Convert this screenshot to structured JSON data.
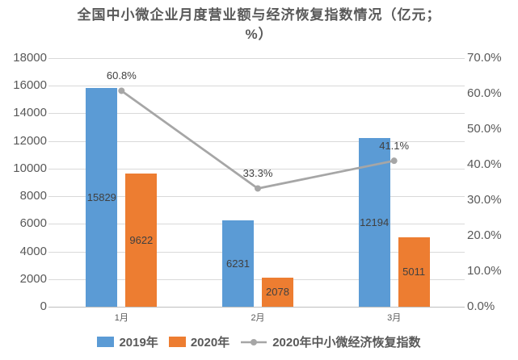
{
  "title_lines": [
    "全国中小微企业月度营业额与经济恢复指数情况（亿元；",
    "%）"
  ],
  "chart_data": {
    "type": "bar",
    "subtype": "combo-bar-line-dual-axis",
    "title": "全国中小微企业月度营业额与经济恢复指数情况（亿元；%）",
    "categories": [
      "1月",
      "2月",
      "3月"
    ],
    "series": [
      {
        "name": "2019年",
        "type": "bar",
        "axis": "left",
        "color": "#5B9BD5",
        "values": [
          15829,
          6231,
          12194
        ],
        "labels": [
          "15829",
          "6231",
          "12194"
        ]
      },
      {
        "name": "2020年",
        "type": "bar",
        "axis": "left",
        "color": "#ED7D31",
        "values": [
          9622,
          2078,
          5011
        ],
        "labels": [
          "9622",
          "2078",
          "5011"
        ]
      },
      {
        "name": "2020年中小微经济恢复指数",
        "type": "line",
        "axis": "right",
        "color": "#A6A6A6",
        "values": [
          60.8,
          33.3,
          41.1
        ],
        "labels": [
          "60.8%",
          "33.3%",
          "41.1%"
        ]
      }
    ],
    "left_axis": {
      "min": 0,
      "max": 18000,
      "step": 2000,
      "tick_labels": [
        "0",
        "2000",
        "4000",
        "6000",
        "8000",
        "10000",
        "12000",
        "14000",
        "16000",
        "18000"
      ]
    },
    "right_axis": {
      "min": 0,
      "max": 70,
      "step": 10,
      "tick_labels": [
        "0.0%",
        "10.0%",
        "20.0%",
        "30.0%",
        "40.0%",
        "50.0%",
        "60.0%",
        "70.0%"
      ]
    },
    "grid": true,
    "legend_position": "bottom"
  },
  "colors": {
    "grid": "#D9D9D9",
    "axis_line": "#BFBFBF",
    "axis_text": "#595959",
    "title_text": "#595959",
    "data_label_text": "#404040"
  }
}
